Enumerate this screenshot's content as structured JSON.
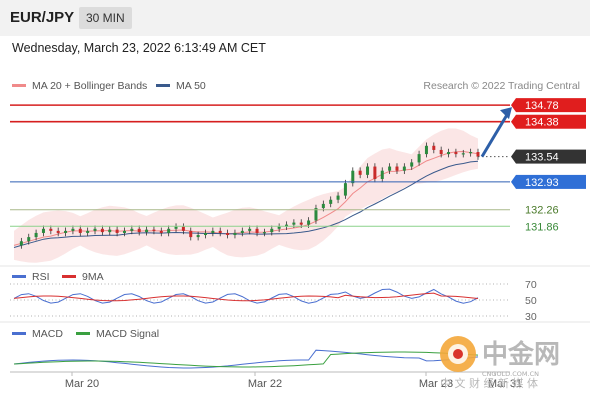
{
  "header": {
    "pair": "EUR/JPY",
    "timeframe": "30 MIN"
  },
  "datetime": "Wednesday, March 23, 2022 6:13:49 AM CET",
  "legend_main": [
    {
      "label": "MA 20 + Bollinger Bands",
      "color": "#f08a8a"
    },
    {
      "label": "MA 50",
      "color": "#3a5a8c"
    }
  ],
  "copyright": "Research © 2022 Trading Central",
  "legend_rsi": [
    {
      "label": "RSI",
      "color": "#4a6fd0"
    },
    {
      "label": "9MA",
      "color": "#d83030"
    }
  ],
  "legend_macd": [
    {
      "label": "MACD",
      "color": "#4a6fd0"
    },
    {
      "label": "MACD Signal",
      "color": "#3aa040"
    }
  ],
  "watermark": {
    "main": "中金网",
    "sub": "中 文 财 经 新 媒 体",
    "domain": "CNGOLD.COM.CN"
  },
  "chart_data": {
    "type": "line",
    "current_price": 133.54,
    "x_labels": [
      "Mar 20",
      "Mar 22",
      "Mar 23",
      "Mar 31"
    ],
    "resistance": [
      134.78,
      134.38
    ],
    "pivot": 132.93,
    "support": [
      132.26,
      131.86
    ],
    "price_path": [
      131.4,
      131.5,
      131.6,
      131.7,
      131.8,
      131.75,
      131.7,
      131.75,
      131.8,
      131.7,
      131.75,
      131.8,
      131.72,
      131.78,
      131.7,
      131.75,
      131.8,
      131.72,
      131.78,
      131.75,
      131.7,
      131.8,
      131.85,
      131.75,
      131.6,
      131.65,
      131.7,
      131.75,
      131.7,
      131.65,
      131.7,
      131.75,
      131.8,
      131.7,
      131.72,
      131.8,
      131.85,
      131.9,
      131.95,
      131.9,
      132.0,
      132.3,
      132.4,
      132.5,
      132.6,
      132.9,
      133.2,
      133.1,
      133.3,
      133.0,
      133.2,
      133.3,
      133.2,
      133.3,
      133.4,
      133.6,
      133.8,
      133.7,
      133.6,
      133.65,
      133.6,
      133.62,
      133.65,
      133.54
    ],
    "projection": {
      "from": 133.54,
      "to": 134.78
    },
    "rsi_levels": [
      70,
      50,
      30
    ]
  }
}
